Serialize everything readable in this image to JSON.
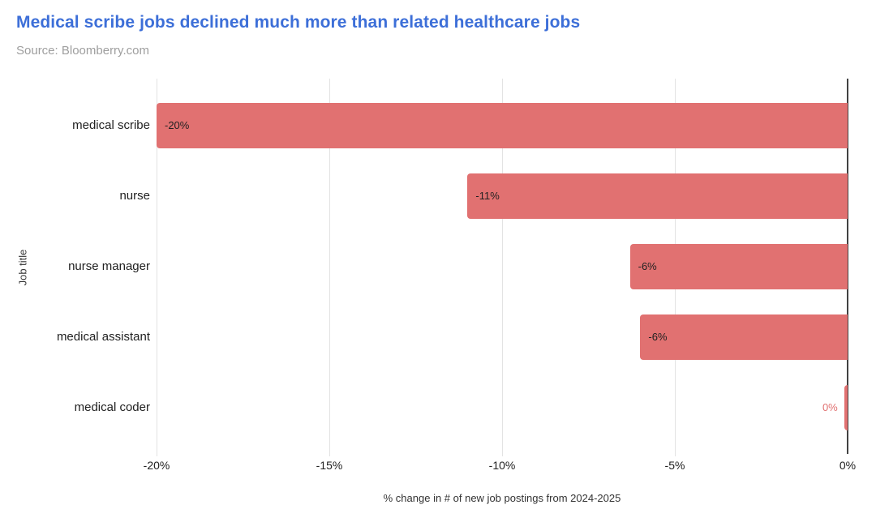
{
  "chart_data": {
    "type": "bar",
    "orientation": "horizontal",
    "title": "Medical scribe jobs declined much more than related healthcare jobs",
    "subtitle": "Source: Bloomberry.com",
    "xlabel": "% change in # of new job postings from 2024-2025",
    "ylabel": "Job title",
    "xlim": [
      -20,
      0
    ],
    "xticks": [
      {
        "value": -20,
        "label": "-20%"
      },
      {
        "value": -15,
        "label": "-15%"
      },
      {
        "value": -10,
        "label": "-10%"
      },
      {
        "value": -5,
        "label": "-5%"
      },
      {
        "value": 0,
        "label": "0%"
      }
    ],
    "categories": [
      "medical scribe",
      "nurse",
      "nurse manager",
      "medical assistant",
      "medical coder"
    ],
    "values": [
      -20,
      -11,
      -6.3,
      -6,
      -0.1
    ],
    "bar_labels": [
      "-20%",
      "-11%",
      "-6%",
      "-6%",
      "0%"
    ],
    "legend": "none",
    "grid": true
  },
  "colors": {
    "title": "#3d6fd8",
    "subtitle": "#9e9e9e",
    "bar": "#e17171",
    "bar_label": "#212121",
    "outside_label": "#e17171",
    "gridline": "#e3e3e3",
    "zero_axis": "#424242",
    "axis_text": "#212121",
    "axis_title": "#333333",
    "category_text": "#212121"
  }
}
